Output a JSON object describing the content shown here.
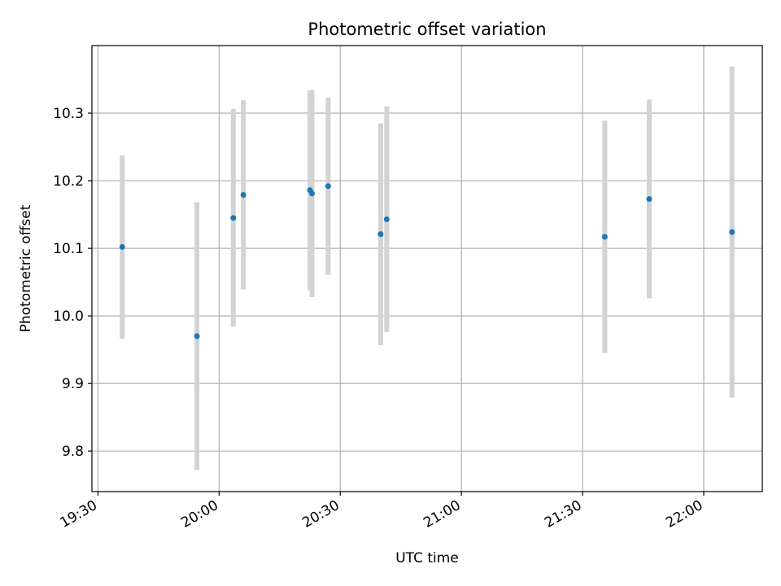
{
  "chart_data": {
    "type": "scatter",
    "title": "Photometric offset variation",
    "xlabel": "UTC time",
    "ylabel": "Photometric offset",
    "x_ticks": [
      "19:30",
      "20:00",
      "20:30",
      "21:00",
      "21:30",
      "22:00"
    ],
    "x_tick_minutes": [
      0,
      30,
      60,
      90,
      120,
      150
    ],
    "y_ticks": [
      "9.8",
      "9.9",
      "10.0",
      "10.1",
      "10.2",
      "10.3"
    ],
    "y_tick_values": [
      9.8,
      9.9,
      10.0,
      10.1,
      10.2,
      10.3
    ],
    "xlim": [
      "19:28.5",
      "22:14.5"
    ],
    "ylim": [
      9.74,
      10.4
    ],
    "grid": true,
    "colors": {
      "point": "#1f77b4",
      "errorbar": "#d3d3d3",
      "grid": "#b0b0b0"
    },
    "series": [
      {
        "points": [
          {
            "time": "19:36",
            "y": 10.102,
            "err": 0.136
          },
          {
            "time": "19:54.5",
            "y": 9.97,
            "err": 0.198
          },
          {
            "time": "20:03.5",
            "y": 10.145,
            "err": 0.161
          },
          {
            "time": "20:06",
            "y": 10.179,
            "err": 0.14
          },
          {
            "time": "20:22.5",
            "y": 10.186,
            "err": 0.148
          },
          {
            "time": "20:23",
            "y": 10.181,
            "err": 0.153
          },
          {
            "time": "20:27",
            "y": 10.192,
            "err": 0.131
          },
          {
            "time": "20:40",
            "y": 10.121,
            "err": 0.164
          },
          {
            "time": "20:41.5",
            "y": 10.143,
            "err": 0.167
          },
          {
            "time": "21:35.5",
            "y": 10.117,
            "err": 0.172
          },
          {
            "time": "21:46.5",
            "y": 10.173,
            "err": 0.147
          },
          {
            "time": "22:07",
            "y": 10.124,
            "err": 0.245
          }
        ]
      }
    ]
  }
}
